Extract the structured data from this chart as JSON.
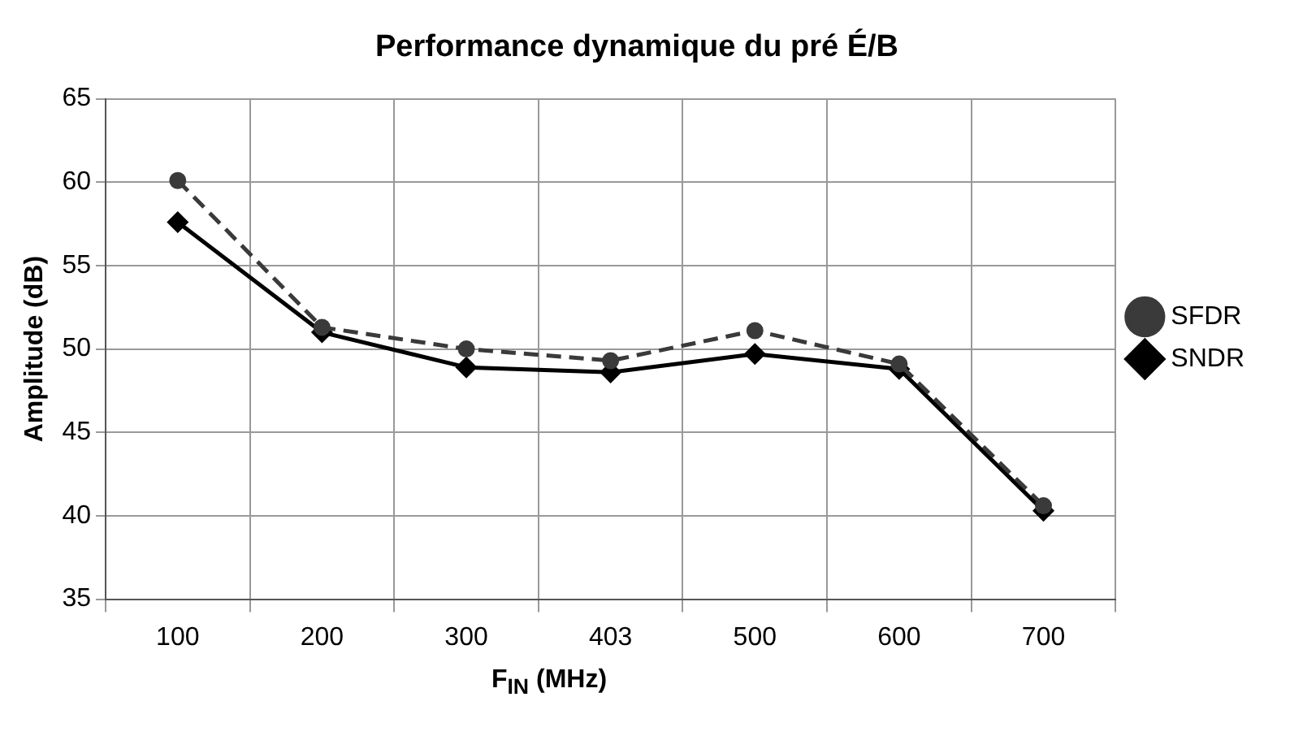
{
  "chart_data": {
    "type": "line",
    "title": "Performance dynamique du pré É/B",
    "xlabel": "F$_{IN}$ (MHz)",
    "ylabel": "Amplitude (dB)",
    "categories": [
      "100",
      "200",
      "300",
      "403",
      "500",
      "600",
      "700"
    ],
    "series": [
      {
        "name": "SNDR",
        "color": "#000000",
        "marker": "diamond",
        "line_style": "solid",
        "values": [
          57.6,
          51.0,
          48.9,
          48.6,
          49.7,
          48.8,
          40.3
        ]
      },
      {
        "name": "SFDR",
        "color": "#3a3a3a",
        "marker": "circle",
        "line_style": "dashed",
        "values": [
          60.1,
          51.3,
          50.0,
          49.3,
          51.1,
          49.1,
          40.6
        ]
      }
    ],
    "ylim": [
      35,
      65
    ],
    "yticks": [
      35,
      40,
      45,
      50,
      55,
      60,
      65
    ],
    "grid": true,
    "legend": "right"
  }
}
